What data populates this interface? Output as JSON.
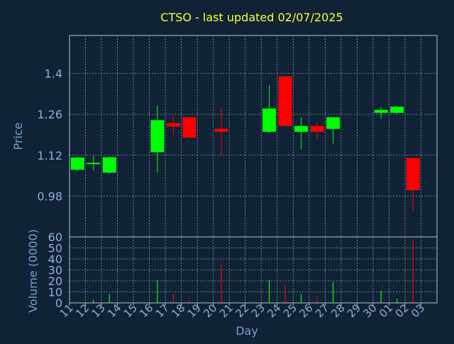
{
  "chart_data": {
    "type": "candlestick",
    "title": "CTSO - last updated 02/07/2025",
    "xlabel": "Day",
    "price_panel": {
      "ylabel": "Price",
      "yticks": [
        "0.98",
        "1.12",
        "1.26",
        "1.4"
      ],
      "ytick_values": [
        0.98,
        1.12,
        1.26,
        1.4
      ],
      "ylim": [
        0.84,
        1.53
      ],
      "grid": true
    },
    "volume_panel": {
      "ylabel": "Volume (0000)",
      "yticks": [
        "0",
        "10",
        "20",
        "30",
        "40",
        "50",
        "60"
      ],
      "ytick_values": [
        0,
        10,
        20,
        30,
        40,
        50,
        60
      ],
      "ylim": [
        0,
        60
      ],
      "grid": true
    },
    "x_labels": [
      "11",
      "12",
      "13",
      "14",
      "15",
      "16",
      "17",
      "18",
      "19",
      "20",
      "21",
      "22",
      "23",
      "24",
      "25",
      "26",
      "27",
      "28",
      "29",
      "30",
      "01",
      "02",
      "03"
    ],
    "colors": {
      "up": "#00ff00",
      "down": "#ff0000",
      "background": "#0f2236",
      "title": "#ffff33"
    },
    "candles": [
      {
        "day": "11",
        "open": 1.07,
        "high": 1.115,
        "low": 1.065,
        "close": 1.112
      },
      {
        "day": "12",
        "open": 1.09,
        "high": 1.118,
        "low": 1.068,
        "close": 1.094
      },
      {
        "day": "13",
        "open": 1.06,
        "high": 1.115,
        "low": 1.055,
        "close": 1.113
      },
      {
        "day": "16",
        "open": 1.13,
        "high": 1.29,
        "low": 1.06,
        "close": 1.24
      },
      {
        "day": "17",
        "open": 1.23,
        "high": 1.255,
        "low": 1.19,
        "close": 1.218
      },
      {
        "day": "18",
        "open": 1.25,
        "high": 1.25,
        "low": 1.18,
        "close": 1.18
      },
      {
        "day": "20",
        "open": 1.21,
        "high": 1.28,
        "low": 1.12,
        "close": 1.2
      },
      {
        "day": "23",
        "open": 1.2,
        "high": 1.36,
        "low": 1.195,
        "close": 1.28
      },
      {
        "day": "24",
        "open": 1.39,
        "high": 1.39,
        "low": 1.22,
        "close": 1.22
      },
      {
        "day": "25",
        "open": 1.2,
        "high": 1.25,
        "low": 1.14,
        "close": 1.22
      },
      {
        "day": "26",
        "open": 1.22,
        "high": 1.23,
        "low": 1.175,
        "close": 1.2
      },
      {
        "day": "27",
        "open": 1.21,
        "high": 1.25,
        "low": 1.16,
        "close": 1.25
      },
      {
        "day": "30",
        "open": 1.265,
        "high": 1.285,
        "low": 1.245,
        "close": 1.275
      },
      {
        "day": "01",
        "open": 1.265,
        "high": 1.288,
        "low": 1.262,
        "close": 1.286
      },
      {
        "day": "02",
        "open": 1.11,
        "high": 1.11,
        "low": 0.93,
        "close": 1.0
      }
    ],
    "volume": [
      {
        "day": "11",
        "value": 0
      },
      {
        "day": "12",
        "value": 3
      },
      {
        "day": "13",
        "value": 8
      },
      {
        "day": "16",
        "value": 21
      },
      {
        "day": "17",
        "value": 8
      },
      {
        "day": "18",
        "value": 3
      },
      {
        "day": "20",
        "value": 35
      },
      {
        "day": "23",
        "value": 21
      },
      {
        "day": "24",
        "value": 16
      },
      {
        "day": "25",
        "value": 8
      },
      {
        "day": "26",
        "value": 6
      },
      {
        "day": "27",
        "value": 19
      },
      {
        "day": "30",
        "value": 11
      },
      {
        "day": "01",
        "value": 4
      },
      {
        "day": "02",
        "value": 58
      }
    ]
  }
}
